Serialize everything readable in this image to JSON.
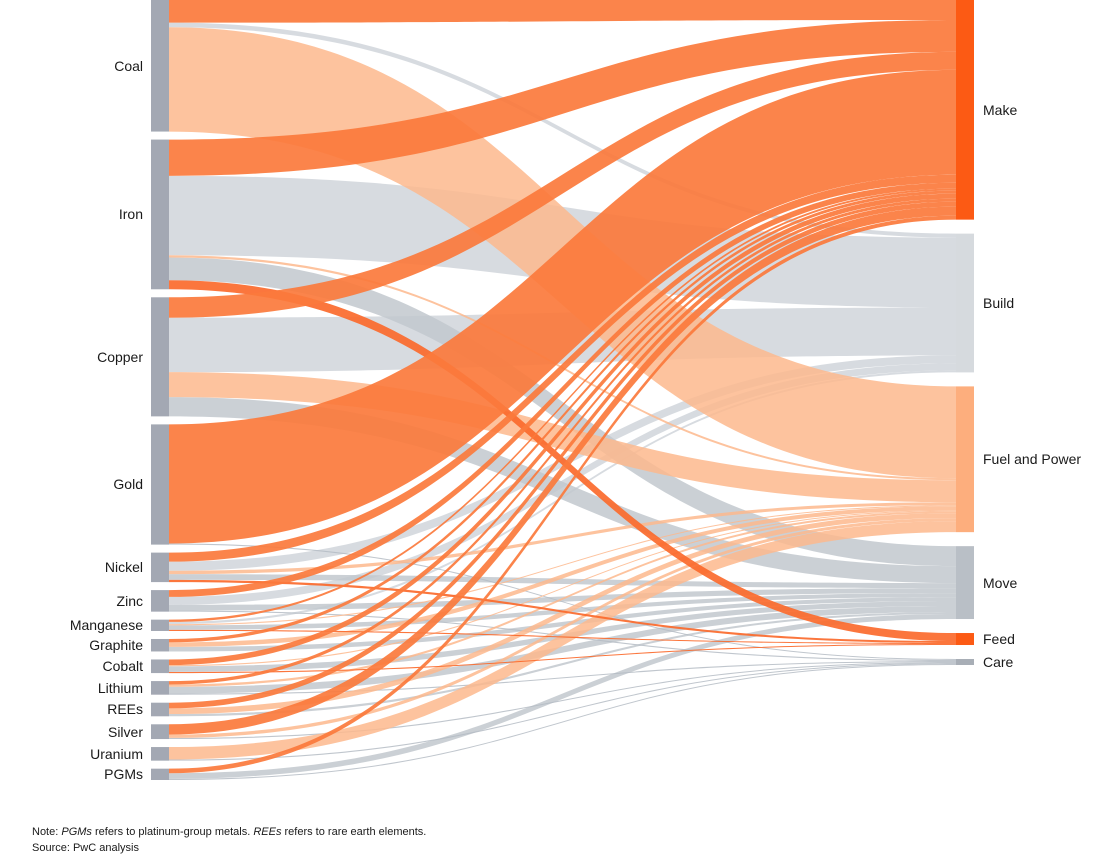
{
  "chart_data": {
    "type": "sankey",
    "sources": [
      "Coal",
      "Iron",
      "Copper",
      "Gold",
      "Nickel",
      "Zinc",
      "Manganese",
      "Graphite",
      "Cobalt",
      "Lithium",
      "REEs",
      "Silver",
      "Uranium",
      "PGMs"
    ],
    "targets": [
      "Make",
      "Build",
      "Fuel and Power",
      "Move",
      "Feed",
      "Care"
    ],
    "target_colors": {
      "Make": "#fb7a3c",
      "Build": "#d0d5da",
      "Fuel and Power": "#fdb88d",
      "Move": "#c2c8ce",
      "Feed": "#fb6a2c",
      "Care": "#b5bcc4"
    },
    "flows": [
      {
        "source": "Coal",
        "target": "Make",
        "value": 20
      },
      {
        "source": "Coal",
        "target": "Build",
        "value": 4
      },
      {
        "source": "Coal",
        "target": "Fuel and Power",
        "value": 92
      },
      {
        "source": "Iron",
        "target": "Make",
        "value": 32
      },
      {
        "source": "Iron",
        "target": "Build",
        "value": 70
      },
      {
        "source": "Iron",
        "target": "Move",
        "value": 20
      },
      {
        "source": "Iron",
        "target": "Fuel and Power",
        "value": 2
      },
      {
        "source": "Iron",
        "target": "Feed",
        "value": 8
      },
      {
        "source": "Copper",
        "target": "Make",
        "value": 18
      },
      {
        "source": "Copper",
        "target": "Build",
        "value": 48
      },
      {
        "source": "Copper",
        "target": "Fuel and Power",
        "value": 22
      },
      {
        "source": "Copper",
        "target": "Move",
        "value": 17
      },
      {
        "source": "Gold",
        "target": "Make",
        "value": 105
      },
      {
        "source": "Gold",
        "target": "Care",
        "value": 1
      },
      {
        "source": "Nickel",
        "target": "Make",
        "value": 8
      },
      {
        "source": "Nickel",
        "target": "Build",
        "value": 8
      },
      {
        "source": "Nickel",
        "target": "Fuel and Power",
        "value": 3
      },
      {
        "source": "Nickel",
        "target": "Move",
        "value": 5
      },
      {
        "source": "Nickel",
        "target": "Feed",
        "value": 2
      },
      {
        "source": "Zinc",
        "target": "Make",
        "value": 6
      },
      {
        "source": "Zinc",
        "target": "Build",
        "value": 7
      },
      {
        "source": "Zinc",
        "target": "Move",
        "value": 5
      },
      {
        "source": "Zinc",
        "target": "Care",
        "value": 1
      },
      {
        "source": "Manganese",
        "target": "Make",
        "value": 2
      },
      {
        "source": "Manganese",
        "target": "Build",
        "value": 2
      },
      {
        "source": "Manganese",
        "target": "Fuel and Power",
        "value": 1
      },
      {
        "source": "Manganese",
        "target": "Move",
        "value": 4
      },
      {
        "source": "Manganese",
        "target": "Feed",
        "value": 1
      },
      {
        "source": "Graphite",
        "target": "Make",
        "value": 3
      },
      {
        "source": "Graphite",
        "target": "Fuel and Power",
        "value": 4
      },
      {
        "source": "Graphite",
        "target": "Move",
        "value": 4
      },
      {
        "source": "Cobalt",
        "target": "Make",
        "value": 5
      },
      {
        "source": "Cobalt",
        "target": "Fuel and Power",
        "value": 1
      },
      {
        "source": "Cobalt",
        "target": "Move",
        "value": 5
      },
      {
        "source": "Cobalt",
        "target": "Feed",
        "value": 1
      },
      {
        "source": "Lithium",
        "target": "Make",
        "value": 3
      },
      {
        "source": "Lithium",
        "target": "Fuel and Power",
        "value": 2
      },
      {
        "source": "Lithium",
        "target": "Move",
        "value": 6
      },
      {
        "source": "Lithium",
        "target": "Care",
        "value": 1
      },
      {
        "source": "REEs",
        "target": "Make",
        "value": 5
      },
      {
        "source": "REEs",
        "target": "Fuel and Power",
        "value": 5
      },
      {
        "source": "REEs",
        "target": "Move",
        "value": 2
      },
      {
        "source": "Silver",
        "target": "Make",
        "value": 9
      },
      {
        "source": "Silver",
        "target": "Fuel and Power",
        "value": 3
      },
      {
        "source": "Silver",
        "target": "Care",
        "value": 1
      },
      {
        "source": "Uranium",
        "target": "Fuel and Power",
        "value": 11
      },
      {
        "source": "Uranium",
        "target": "Care",
        "value": 1
      },
      {
        "source": "PGMs",
        "target": "Make",
        "value": 4
      },
      {
        "source": "PGMs",
        "target": "Move",
        "value": 5
      },
      {
        "source": "PGMs",
        "target": "Care",
        "value": 1
      }
    ]
  },
  "note": {
    "prefix": "Note: ",
    "term1": "PGMs",
    "text1": " refers to platinum-group metals. ",
    "term2": "REEs",
    "text2": " refers to rare earth elements."
  },
  "source_line": "Source: PwC analysis"
}
